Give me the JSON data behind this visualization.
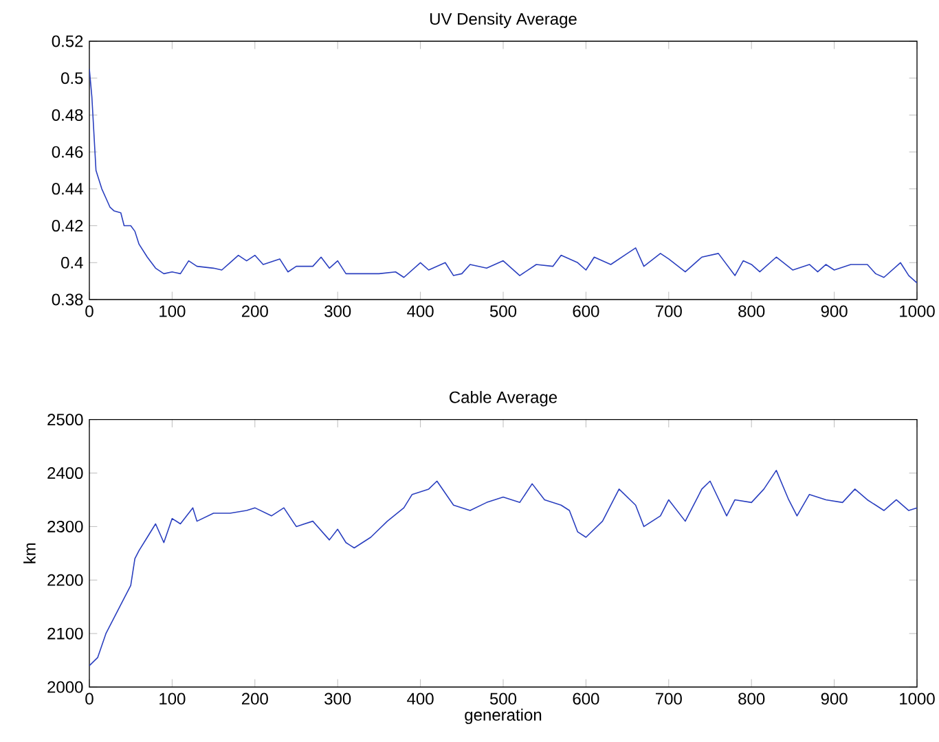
{
  "chart_data": [
    {
      "type": "line",
      "title": "UV Density Average",
      "xlim": [
        0,
        1000
      ],
      "ylim": [
        0.38,
        0.52
      ],
      "xticks": [
        0,
        100,
        200,
        300,
        400,
        500,
        600,
        700,
        800,
        900,
        1000
      ],
      "yticks": [
        0.38,
        0.4,
        0.42,
        0.44,
        0.46,
        0.48,
        0.5,
        0.52
      ],
      "grid": false,
      "x": [
        0,
        3,
        8,
        15,
        20,
        25,
        30,
        38,
        42,
        50,
        55,
        60,
        70,
        80,
        90,
        100,
        110,
        120,
        130,
        150,
        160,
        170,
        180,
        190,
        200,
        210,
        230,
        240,
        250,
        270,
        280,
        290,
        300,
        310,
        330,
        350,
        370,
        380,
        400,
        410,
        430,
        440,
        450,
        460,
        480,
        500,
        510,
        520,
        540,
        560,
        570,
        590,
        600,
        610,
        630,
        650,
        660,
        670,
        690,
        700,
        720,
        740,
        760,
        780,
        790,
        800,
        810,
        830,
        850,
        870,
        880,
        890,
        900,
        920,
        940,
        950,
        960,
        980,
        990,
        1000
      ],
      "series": [
        {
          "color": "#2a3fbf",
          "values": [
            0.505,
            0.49,
            0.45,
            0.44,
            0.435,
            0.43,
            0.428,
            0.427,
            0.42,
            0.42,
            0.417,
            0.41,
            0.403,
            0.397,
            0.394,
            0.395,
            0.394,
            0.401,
            0.398,
            0.397,
            0.396,
            0.4,
            0.404,
            0.401,
            0.404,
            0.399,
            0.402,
            0.395,
            0.398,
            0.398,
            0.403,
            0.397,
            0.401,
            0.394,
            0.394,
            0.394,
            0.395,
            0.392,
            0.4,
            0.396,
            0.4,
            0.393,
            0.394,
            0.399,
            0.397,
            0.401,
            0.397,
            0.393,
            0.399,
            0.398,
            0.404,
            0.4,
            0.396,
            0.403,
            0.399,
            0.405,
            0.408,
            0.398,
            0.405,
            0.402,
            0.395,
            0.403,
            0.405,
            0.393,
            0.401,
            0.399,
            0.395,
            0.403,
            0.396,
            0.399,
            0.395,
            0.399,
            0.396,
            0.399,
            0.399,
            0.394,
            0.392,
            0.4,
            0.393,
            0.389
          ]
        }
      ]
    },
    {
      "type": "line",
      "title": "Cable Average",
      "xlabel": "generation",
      "ylabel": "km",
      "xlim": [
        0,
        1000
      ],
      "ylim": [
        2000,
        2500
      ],
      "xticks": [
        0,
        100,
        200,
        300,
        400,
        500,
        600,
        700,
        800,
        900,
        1000
      ],
      "yticks": [
        2000,
        2100,
        2200,
        2300,
        2400,
        2500
      ],
      "grid": false,
      "x": [
        0,
        10,
        20,
        30,
        40,
        50,
        55,
        60,
        70,
        80,
        90,
        100,
        110,
        125,
        130,
        150,
        170,
        190,
        200,
        220,
        235,
        250,
        270,
        290,
        300,
        310,
        320,
        340,
        360,
        380,
        390,
        410,
        420,
        440,
        460,
        480,
        500,
        520,
        535,
        550,
        570,
        580,
        590,
        600,
        620,
        640,
        660,
        670,
        690,
        700,
        720,
        740,
        750,
        770,
        780,
        800,
        815,
        830,
        845,
        855,
        870,
        890,
        910,
        925,
        940,
        960,
        975,
        990,
        1000
      ],
      "series": [
        {
          "color": "#2a3fbf",
          "values": [
            2040,
            2055,
            2100,
            2130,
            2160,
            2190,
            2240,
            2255,
            2280,
            2305,
            2270,
            2315,
            2305,
            2335,
            2310,
            2325,
            2325,
            2330,
            2335,
            2320,
            2335,
            2300,
            2310,
            2275,
            2295,
            2270,
            2260,
            2280,
            2310,
            2335,
            2360,
            2370,
            2385,
            2340,
            2330,
            2345,
            2355,
            2345,
            2380,
            2350,
            2340,
            2330,
            2290,
            2280,
            2310,
            2370,
            2340,
            2300,
            2320,
            2350,
            2310,
            2370,
            2385,
            2320,
            2350,
            2345,
            2370,
            2405,
            2350,
            2320,
            2360,
            2350,
            2345,
            2370,
            2350,
            2330,
            2350,
            2330,
            2335
          ]
        }
      ]
    }
  ]
}
